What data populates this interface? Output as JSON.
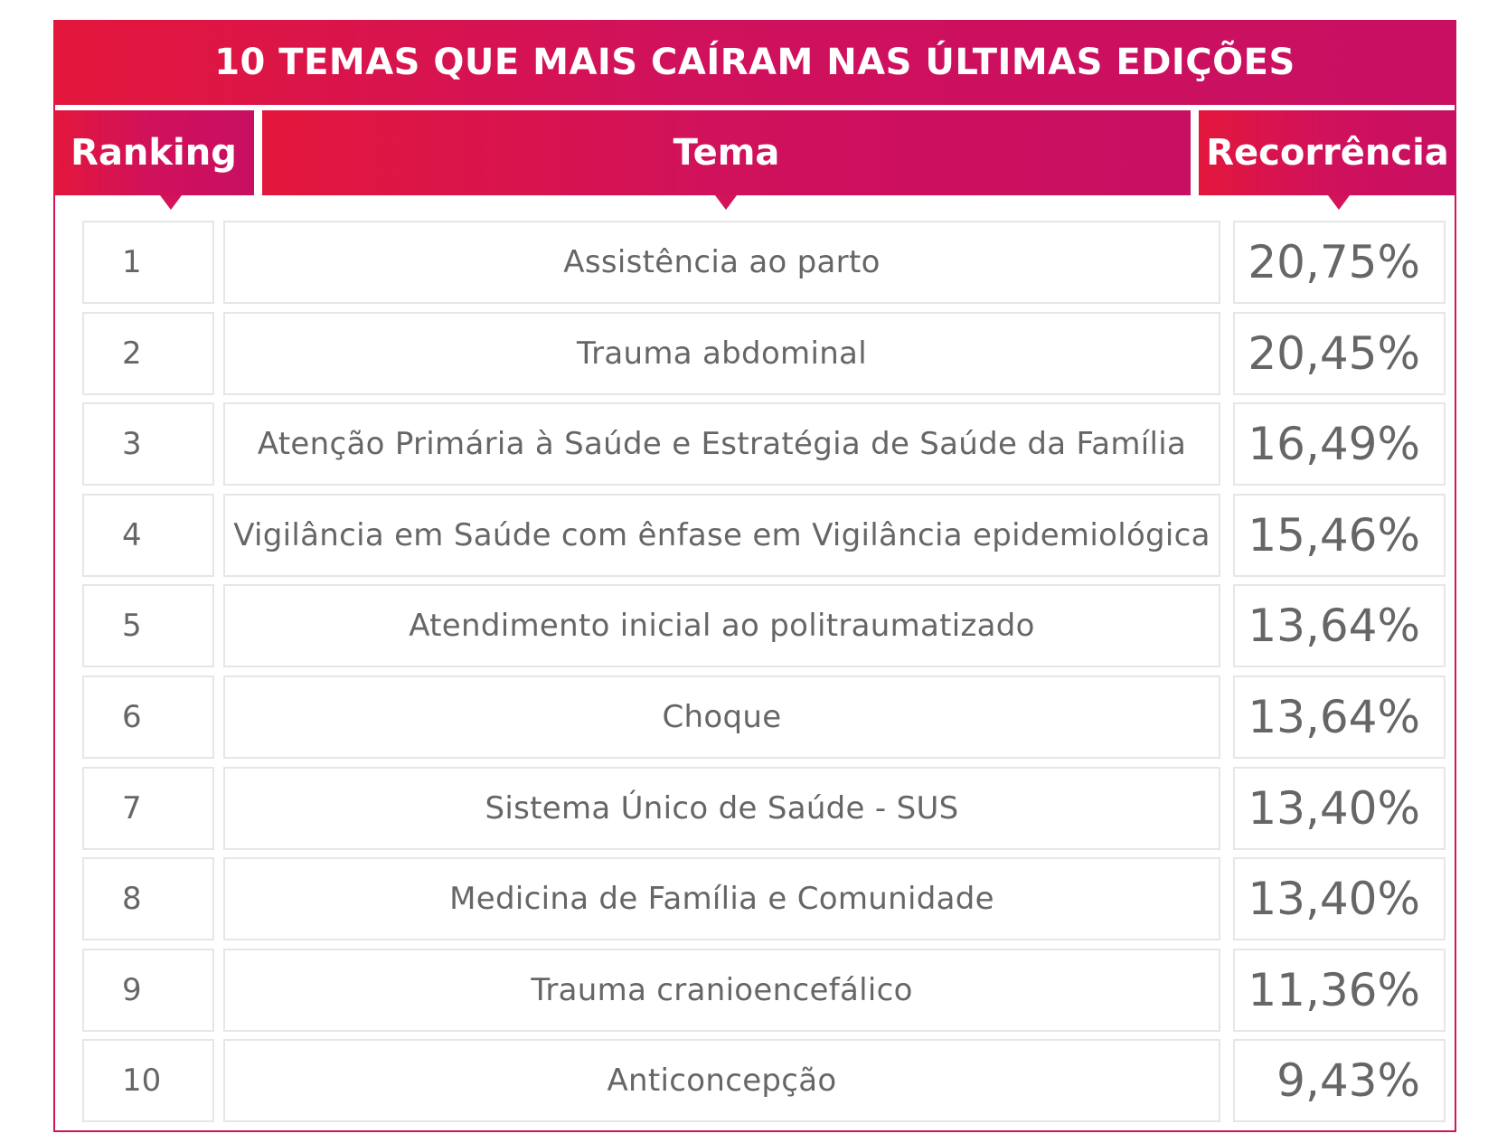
{
  "title": "10 TEMAS QUE MAIS CAÍRAM NAS ÚLTIMAS EDIÇÕES",
  "headers": {
    "ranking": "Ranking",
    "tema": "Tema",
    "recorrencia": "Recorrência"
  },
  "colors": {
    "accent_start": "#e3173c",
    "accent_end": "#c80f62",
    "text": "#666666",
    "cell_border": "#e6e6e6"
  },
  "chart_data": {
    "type": "table",
    "title": "10 TEMAS QUE MAIS CAÍRAM NAS ÚLTIMAS EDIÇÕES",
    "columns": [
      "Ranking",
      "Tema",
      "Recorrência"
    ],
    "rows": [
      {
        "ranking": "1",
        "tema": "Assistência ao parto",
        "recorrencia": "20,75%"
      },
      {
        "ranking": "2",
        "tema": "Trauma abdominal",
        "recorrencia": "20,45%"
      },
      {
        "ranking": "3",
        "tema": "Atenção Primária à Saúde e Estratégia de Saúde da Família",
        "recorrencia": "16,49%"
      },
      {
        "ranking": "4",
        "tema": "Vigilância em Saúde com ênfase em Vigilância epidemiológica",
        "recorrencia": "15,46%"
      },
      {
        "ranking": "5",
        "tema": "Atendimento inicial ao politraumatizado",
        "recorrencia": "13,64%"
      },
      {
        "ranking": "6",
        "tema": "Choque",
        "recorrencia": "13,64%"
      },
      {
        "ranking": "7",
        "tema": "Sistema Único de Saúde - SUS",
        "recorrencia": "13,40%"
      },
      {
        "ranking": "8",
        "tema": "Medicina de Família e Comunidade",
        "recorrencia": "13,40%"
      },
      {
        "ranking": "9",
        "tema": "Trauma cranioencefálico",
        "recorrencia": "11,36%"
      },
      {
        "ranking": "10",
        "tema": "Anticoncepção",
        "recorrencia": "9,43%"
      }
    ]
  }
}
